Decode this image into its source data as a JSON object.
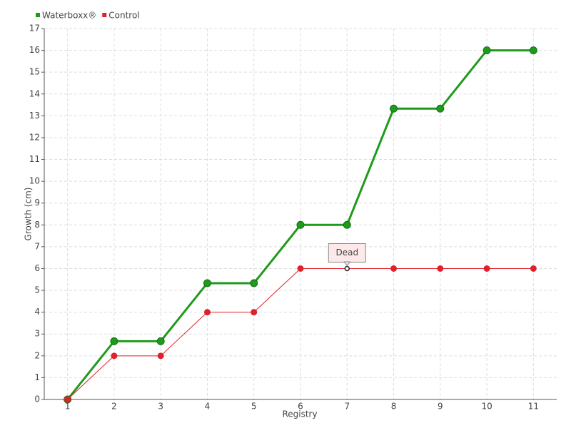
{
  "chart_data": {
    "type": "line",
    "x_label": "Registry",
    "y_label": "Growth (cm)",
    "categories": [
      "1",
      "2",
      "3",
      "4",
      "5",
      "6",
      "7",
      "8",
      "9",
      "10",
      "11"
    ],
    "series": [
      {
        "name": "Waterboxx®",
        "color": "#1f9a1a",
        "values": [
          0,
          2.67,
          2.67,
          5.33,
          5.33,
          8,
          8,
          13.33,
          13.33,
          16,
          16
        ]
      },
      {
        "name": "Control",
        "color": "#e0202a",
        "values": [
          0,
          2,
          2,
          4,
          4,
          6,
          6,
          6,
          6,
          6,
          6
        ]
      }
    ],
    "ylim": [
      0,
      17
    ],
    "yticks": [
      0,
      1,
      2,
      3,
      4,
      5,
      6,
      7,
      8,
      9,
      10,
      11,
      12,
      13,
      14,
      15,
      16,
      17
    ],
    "grid": true,
    "legend": "top-left",
    "annotations": [
      {
        "text": "Dead",
        "x": "7",
        "y": 6
      }
    ]
  }
}
